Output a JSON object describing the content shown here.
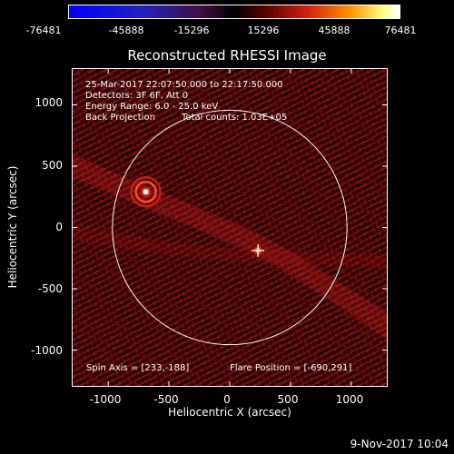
{
  "colorbar": {
    "ticks": [
      "-76481",
      "-45888",
      "-15296",
      "15296",
      "45888",
      "76481"
    ],
    "range": [
      -76481,
      76481
    ]
  },
  "title": "Reconstructed RHESSI Image",
  "info": {
    "time_range": "25-Mar-2017 22:07:50.000 to 22:17:50.000",
    "detectors": "Detectors: 3F 6F, Att 0",
    "energy": "Energy Range: 6.0 - 25.0 keV",
    "method": "Back Projection",
    "total_counts": "Total counts: 1.03E+05",
    "spin_axis": "Spin Axis = [233,-188]",
    "flare_position": "Flare Position = [-690,291]"
  },
  "axes": {
    "xlabel": "Heliocentric X (arcsec)",
    "ylabel": "Heliocentric Y (arcsec)",
    "xticks": [
      "-1000",
      "-500",
      "0",
      "500",
      "1000"
    ],
    "yticks": [
      "1000",
      "500",
      "0",
      "-500",
      "-1000"
    ],
    "xrange": [
      -1300,
      1300
    ],
    "yrange": [
      -1300,
      1300
    ]
  },
  "image": {
    "solar_limb_radius_arcsec": 965,
    "sources": [
      {
        "x": -690,
        "y": 291,
        "kind": "flare"
      },
      {
        "x": 233,
        "y": -188,
        "kind": "spin-axis"
      }
    ]
  },
  "datestamp": "9-Nov-2017 10:04"
}
